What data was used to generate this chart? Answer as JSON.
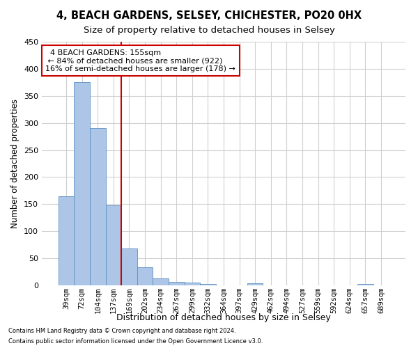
{
  "title": "4, BEACH GARDENS, SELSEY, CHICHESTER, PO20 0HX",
  "subtitle": "Size of property relative to detached houses in Selsey",
  "xlabel": "Distribution of detached houses by size in Selsey",
  "ylabel": "Number of detached properties",
  "footnote1": "Contains HM Land Registry data © Crown copyright and database right 2024.",
  "footnote2": "Contains public sector information licensed under the Open Government Licence v3.0.",
  "bin_labels": [
    "39sqm",
    "72sqm",
    "104sqm",
    "137sqm",
    "169sqm",
    "202sqm",
    "234sqm",
    "267sqm",
    "299sqm",
    "332sqm",
    "364sqm",
    "397sqm",
    "429sqm",
    "462sqm",
    "494sqm",
    "527sqm",
    "559sqm",
    "592sqm",
    "624sqm",
    "657sqm",
    "689sqm"
  ],
  "bar_heights": [
    165,
    375,
    290,
    148,
    68,
    33,
    13,
    7,
    5,
    3,
    0,
    0,
    4,
    0,
    0,
    0,
    0,
    0,
    0,
    3,
    0
  ],
  "bar_color": "#adc6e8",
  "bar_edge_color": "#5a8fc0",
  "ylim": [
    0,
    450
  ],
  "annotation_text": "  4 BEACH GARDENS: 155sqm  \n ← 84% of detached houses are smaller (922)\n16% of semi-detached houses are larger (178) →",
  "vline_color": "#cc0000",
  "annotation_box_color": "#ffffff",
  "annotation_box_edge": "#cc0000",
  "background_color": "#ffffff",
  "grid_color": "#d0d0d0",
  "title_fontsize": 10.5,
  "subtitle_fontsize": 9.5,
  "axis_label_fontsize": 8.5,
  "tick_fontsize": 7.5,
  "annotation_fontsize": 8.0,
  "yticks": [
    0,
    50,
    100,
    150,
    200,
    250,
    300,
    350,
    400,
    450
  ]
}
